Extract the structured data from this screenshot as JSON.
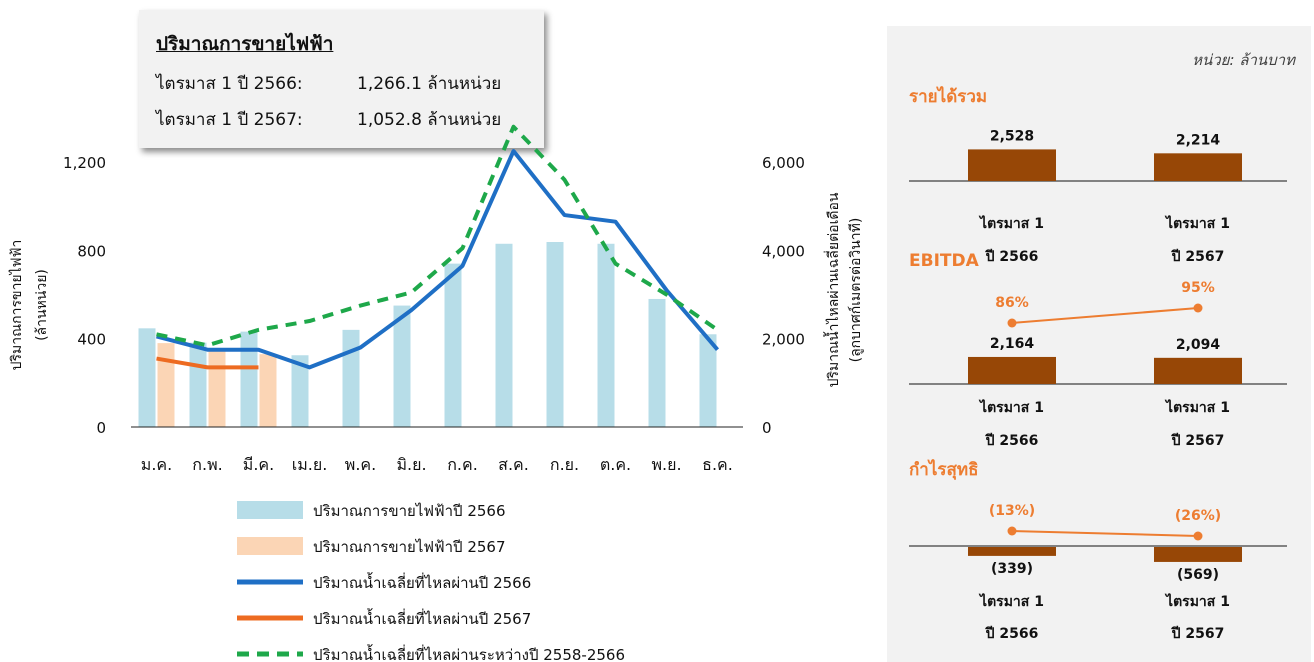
{
  "info_box": {
    "title": "ปริมาณการขายไฟฟ้า",
    "rows": [
      {
        "label": "ไตรมาส 1 ปี 2566:",
        "value": "1,266.1 ล้านหน่วย"
      },
      {
        "label": "ไตรมาส 1 ปี 2567:",
        "value": "1,052.8 ล้านหน่วย"
      }
    ]
  },
  "right_panel": {
    "unit": "หน่วย: ล้านบาท",
    "period_line1": "ไตรมาส 1",
    "period_years": [
      "ปี 2566",
      "ปี 2567"
    ]
  },
  "colors": {
    "bar_2566": "#b7dde8",
    "bar_2567": "#fbd5b5",
    "flow_2566": "#1f6fc5",
    "flow_2567": "#ed6b21",
    "flow_avg": "#1ea84a",
    "fin_bar": "#974706",
    "fin_line": "#ed7d31",
    "section_title": "#ed7d31"
  },
  "chart_data": [
    {
      "type": "bar+line",
      "categories": [
        "ม.ค.",
        "ก.พ.",
        "มี.ค.",
        "เม.ย.",
        "พ.ค.",
        "มิ.ย.",
        "ก.ค.",
        "ส.ค.",
        "ก.ย.",
        "ต.ค.",
        "พ.ย.",
        "ธ.ค."
      ],
      "ylabel": "ปริมาณการขายไฟฟ้า",
      "ylabel2": "(ล้านหน่วย)",
      "y2label": "ปริมาณน้ำไหลผ่านเฉลี่ยต่อเดือน",
      "y2label2": "(ลูกบาศก์เมตรต่อวินาที)",
      "ylim": [
        0,
        1300
      ],
      "y2lim": [
        0,
        6500
      ],
      "yticks": [
        0,
        400,
        800,
        1200
      ],
      "ytick_labels": [
        "0",
        "400",
        "800",
        "1,200"
      ],
      "y2ticks": [
        0,
        2000,
        4000,
        6000
      ],
      "y2tick_labels": [
        "0",
        "2,000",
        "4,000",
        "6,000"
      ],
      "bars": [
        {
          "name": "ปริมาณการขายไฟฟ้าปี 2566",
          "values": [
            447,
            382,
            432,
            325,
            440,
            550,
            740,
            830,
            838,
            830,
            580,
            420
          ]
        },
        {
          "name": "ปริมาณการขายไฟฟ้าปี 2567",
          "values": [
            380,
            345,
            330
          ]
        }
      ],
      "lines": [
        {
          "name": "ปริมาณน้ำเฉลี่ยที่ไหลผ่านปี 2566",
          "axis": "right",
          "style": "solid",
          "values": [
            2050,
            1750,
            1750,
            1350,
            1800,
            2650,
            3650,
            6250,
            4800,
            4650,
            3100,
            1750
          ]
        },
        {
          "name": "ปริมาณน้ำเฉลี่ยที่ไหลผ่านปี 2567",
          "axis": "right",
          "style": "solid",
          "values": [
            1550,
            1350,
            1350
          ]
        },
        {
          "name": "ปริมาณน้ำเฉลี่ยที่ไหลผ่านระหว่างปี 2558-2566",
          "axis": "right",
          "style": "dashed",
          "values": [
            2100,
            1850,
            2200,
            2400,
            2750,
            3050,
            4050,
            6800,
            5600,
            3700,
            3000,
            2200
          ]
        }
      ]
    },
    {
      "type": "bar",
      "title": "รายได้รวม",
      "categories": [
        "ไตรมาส 1 ปี 2566",
        "ไตรมาส 1 ปี 2567"
      ],
      "values": [
        2528,
        2214
      ],
      "value_labels": [
        "2,528",
        "2,214"
      ]
    },
    {
      "type": "bar+line",
      "title": "EBITDA",
      "categories": [
        "ไตรมาส 1 ปี 2566",
        "ไตรมาส 1 ปี 2567"
      ],
      "values": [
        2164,
        2094
      ],
      "value_labels": [
        "2,164",
        "2,094"
      ],
      "margin_values": [
        86,
        95
      ],
      "margin_labels": [
        "86%",
        "95%"
      ]
    },
    {
      "type": "bar+line",
      "title": "กำไรสุทธิ",
      "categories": [
        "ไตรมาส 1 ปี 2566",
        "ไตรมาส 1 ปี 2567"
      ],
      "values": [
        -339,
        -569
      ],
      "value_labels": [
        "(339)",
        "(569)"
      ],
      "margin_values": [
        -13,
        -26
      ],
      "margin_labels": [
        "(13%)",
        "(26%)"
      ]
    }
  ]
}
